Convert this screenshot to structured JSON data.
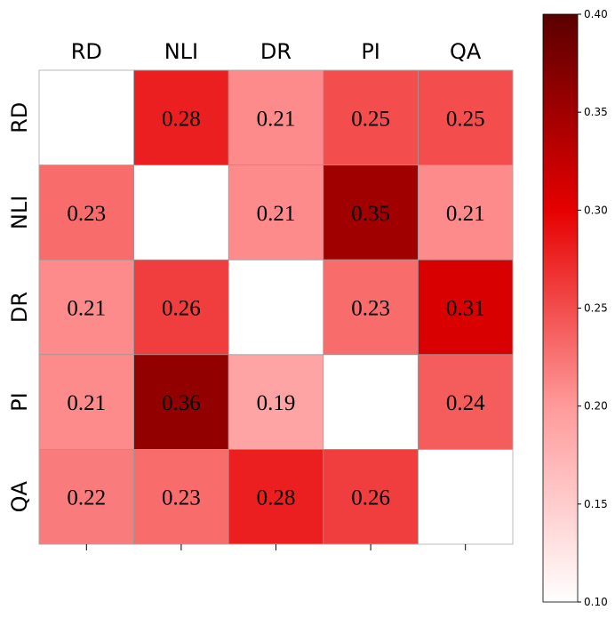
{
  "chart_data": {
    "type": "heatmap",
    "columns": [
      "RD",
      "NLI",
      "DR",
      "PI",
      "QA"
    ],
    "rows": [
      "RD",
      "NLI",
      "DR",
      "PI",
      "QA"
    ],
    "values": [
      [
        null,
        0.28,
        0.21,
        0.25,
        0.25
      ],
      [
        0.23,
        null,
        0.21,
        0.35,
        0.21
      ],
      [
        0.21,
        0.26,
        null,
        0.23,
        0.31
      ],
      [
        0.21,
        0.36,
        0.19,
        null,
        0.24
      ],
      [
        0.22,
        0.23,
        0.28,
        0.26,
        null
      ]
    ],
    "colormap": [
      "#ffffff",
      "#ff9a9a",
      "#e60000",
      "#5a0000"
    ],
    "clim": [
      0.1,
      0.4
    ],
    "cticks": [
      {
        "value": 0.1,
        "label": "0.10"
      },
      {
        "value": 0.15,
        "label": "0.15"
      },
      {
        "value": 0.2,
        "label": "0.20"
      },
      {
        "value": 0.25,
        "label": "0.25"
      },
      {
        "value": 0.3,
        "label": "0.30"
      },
      {
        "value": 0.35,
        "label": "0.35"
      },
      {
        "value": 0.4,
        "label": "0.40"
      }
    ]
  }
}
